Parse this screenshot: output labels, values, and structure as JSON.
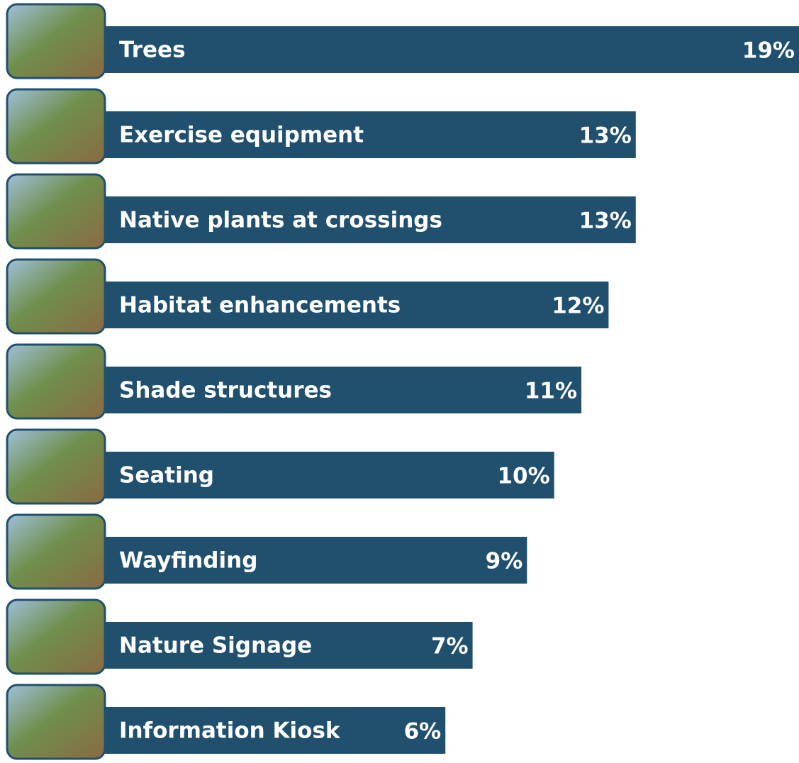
{
  "chart_data": {
    "type": "bar",
    "orientation": "horizontal",
    "categories": [
      "Trees",
      "Exercise equipment",
      "Native plants at crossings",
      "Habitat enhancements",
      "Shade structures",
      "Seating",
      "Wayfinding",
      "Nature Signage",
      "Information Kiosk"
    ],
    "values": [
      19,
      13,
      13,
      12,
      11,
      10,
      9,
      7,
      6
    ],
    "value_labels": [
      "19%",
      "13%",
      "13%",
      "12%",
      "11%",
      "10%",
      "9%",
      "7%",
      "6%"
    ],
    "color": "#21506f"
  }
}
